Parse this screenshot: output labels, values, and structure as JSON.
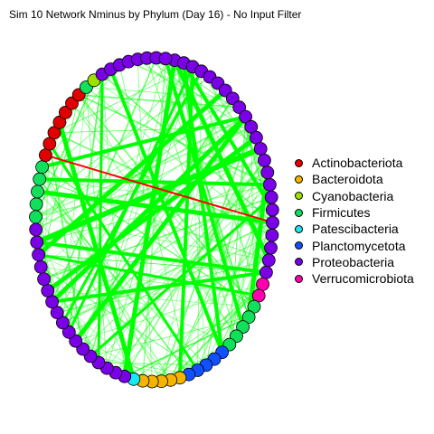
{
  "title": "Sim 10 Network Nminus by Phylum (Day 16) - No Input Filter",
  "colors": {
    "Actinobacteriota": "#e00000",
    "Bacteroidota": "#f5b400",
    "Cyanobacteria": "#9ee000",
    "Firmicutes": "#10e05a",
    "Patescibacteria": "#18e8f0",
    "Planctomycetota": "#1050ff",
    "Proteobacteria": "#7a00e6",
    "Verrucomicrobiota": "#ff00b0",
    "positive_edge": "#00ff00",
    "negative_edge": "#ff0000"
  },
  "legend": [
    {
      "label": "Actinobacteriota",
      "color": "#e00000"
    },
    {
      "label": "Bacteroidota",
      "color": "#f5b400"
    },
    {
      "label": "Cyanobacteria",
      "color": "#9ee000"
    },
    {
      "label": "Firmicutes",
      "color": "#10e05a"
    },
    {
      "label": "Patescibacteria",
      "color": "#18e8f0"
    },
    {
      "label": "Planctomycetota",
      "color": "#1050ff"
    },
    {
      "label": "Proteobacteria",
      "color": "#7a00e6"
    },
    {
      "label": "Verrucomicrobiota",
      "color": "#ff00b0"
    }
  ]
}
